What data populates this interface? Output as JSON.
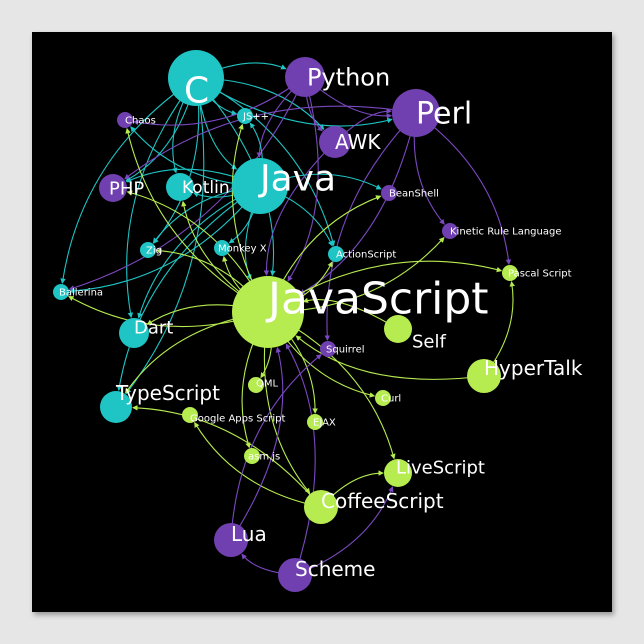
{
  "colors": {
    "teal": "#1fc4c4",
    "purple": "#7040b0",
    "lime": "#b6ec50",
    "background": "#000000"
  },
  "nodes": [
    {
      "id": "c",
      "label": "C",
      "color": "teal"
    },
    {
      "id": "python",
      "label": "Python",
      "color": "purple"
    },
    {
      "id": "perl",
      "label": "Perl",
      "color": "purple"
    },
    {
      "id": "awk",
      "label": "AWK",
      "color": "purple"
    },
    {
      "id": "chaos",
      "label": "Chaos",
      "color": "purple"
    },
    {
      "id": "jspp",
      "label": "JS++",
      "color": "teal"
    },
    {
      "id": "php",
      "label": "PHP",
      "color": "purple"
    },
    {
      "id": "kotlin",
      "label": "Kotlin",
      "color": "teal"
    },
    {
      "id": "java",
      "label": "Java",
      "color": "teal"
    },
    {
      "id": "beanshell",
      "label": "BeanShell",
      "color": "purple"
    },
    {
      "id": "krl",
      "label": "Kinetic Rule Language",
      "color": "purple"
    },
    {
      "id": "zig",
      "label": "Zig",
      "color": "teal"
    },
    {
      "id": "monkeyx",
      "label": "Monkey X",
      "color": "teal"
    },
    {
      "id": "actionscript",
      "label": "ActionScript",
      "color": "teal"
    },
    {
      "id": "pascalscript",
      "label": "Pascal Script",
      "color": "lime"
    },
    {
      "id": "ballerina",
      "label": "Ballerina",
      "color": "teal"
    },
    {
      "id": "javascript",
      "label": "JavaScript",
      "color": "lime"
    },
    {
      "id": "self",
      "label": "Self",
      "color": "lime"
    },
    {
      "id": "dart",
      "label": "Dart",
      "color": "teal"
    },
    {
      "id": "squirrel",
      "label": "Squirrel",
      "color": "purple"
    },
    {
      "id": "hypertalk",
      "label": "HyperTalk",
      "color": "lime"
    },
    {
      "id": "qml",
      "label": "QML",
      "color": "lime"
    },
    {
      "id": "curl",
      "label": "Curl",
      "color": "lime"
    },
    {
      "id": "typescript",
      "label": "TypeScript",
      "color": "teal"
    },
    {
      "id": "gas",
      "label": "Google Apps Script",
      "color": "lime"
    },
    {
      "id": "ejax",
      "label": "EJAX",
      "color": "lime"
    },
    {
      "id": "asmjs",
      "label": "asm.js",
      "color": "lime"
    },
    {
      "id": "livescript",
      "label": "LiveScript",
      "color": "lime"
    },
    {
      "id": "coffeescript",
      "label": "CoffeeScript",
      "color": "lime"
    },
    {
      "id": "lua",
      "label": "Lua",
      "color": "purple"
    },
    {
      "id": "scheme",
      "label": "Scheme",
      "color": "purple"
    }
  ],
  "edges": [
    [
      "c",
      "python"
    ],
    [
      "c",
      "perl"
    ],
    [
      "c",
      "awk"
    ],
    [
      "c",
      "java"
    ],
    [
      "c",
      "php"
    ],
    [
      "c",
      "kotlin"
    ],
    [
      "c",
      "javascript"
    ],
    [
      "c",
      "dart"
    ],
    [
      "c",
      "typescript"
    ],
    [
      "c",
      "ballerina"
    ],
    [
      "c",
      "zig"
    ],
    [
      "c",
      "jspp"
    ],
    [
      "c",
      "actionscript"
    ],
    [
      "python",
      "perl"
    ],
    [
      "python",
      "chaos"
    ],
    [
      "python",
      "java"
    ],
    [
      "python",
      "javascript"
    ],
    [
      "python",
      "awk"
    ],
    [
      "python",
      "ballerina"
    ],
    [
      "perl",
      "krl"
    ],
    [
      "perl",
      "pascalscript"
    ],
    [
      "perl",
      "php"
    ],
    [
      "perl",
      "javascript"
    ],
    [
      "perl",
      "squirrel"
    ],
    [
      "awk",
      "perl"
    ],
    [
      "awk",
      "javascript"
    ],
    [
      "java",
      "kotlin"
    ],
    [
      "java",
      "php"
    ],
    [
      "java",
      "beanshell"
    ],
    [
      "java",
      "javascript"
    ],
    [
      "java",
      "chaos"
    ],
    [
      "java",
      "zig"
    ],
    [
      "java",
      "monkeyx"
    ],
    [
      "java",
      "dart"
    ],
    [
      "java",
      "ballerina"
    ],
    [
      "java",
      "typescript"
    ],
    [
      "java",
      "actionscript"
    ],
    [
      "java",
      "jspp"
    ],
    [
      "javascript",
      "pascalscript"
    ],
    [
      "javascript",
      "krl"
    ],
    [
      "javascript",
      "beanshell"
    ],
    [
      "javascript",
      "actionscript"
    ],
    [
      "javascript",
      "chaos"
    ],
    [
      "javascript",
      "php"
    ],
    [
      "javascript",
      "kotlin"
    ],
    [
      "javascript",
      "zig"
    ],
    [
      "javascript",
      "jspp"
    ],
    [
      "javascript",
      "dart"
    ],
    [
      "javascript",
      "ballerina"
    ],
    [
      "javascript",
      "typescript"
    ],
    [
      "javascript",
      "qml"
    ],
    [
      "javascript",
      "curl"
    ],
    [
      "javascript",
      "ejax"
    ],
    [
      "javascript",
      "asmjs"
    ],
    [
      "javascript",
      "livescript"
    ],
    [
      "javascript",
      "coffeescript"
    ],
    [
      "javascript",
      "monkeyx"
    ],
    [
      "self",
      "javascript"
    ],
    [
      "hypertalk",
      "javascript"
    ],
    [
      "hypertalk",
      "pascalscript"
    ],
    [
      "coffeescript",
      "livescript"
    ],
    [
      "coffeescript",
      "typescript"
    ],
    [
      "coffeescript",
      "gas"
    ],
    [
      "lua",
      "javascript"
    ],
    [
      "lua",
      "squirrel"
    ],
    [
      "scheme",
      "javascript"
    ],
    [
      "scheme",
      "lua"
    ],
    [
      "scheme",
      "livescript"
    ]
  ]
}
